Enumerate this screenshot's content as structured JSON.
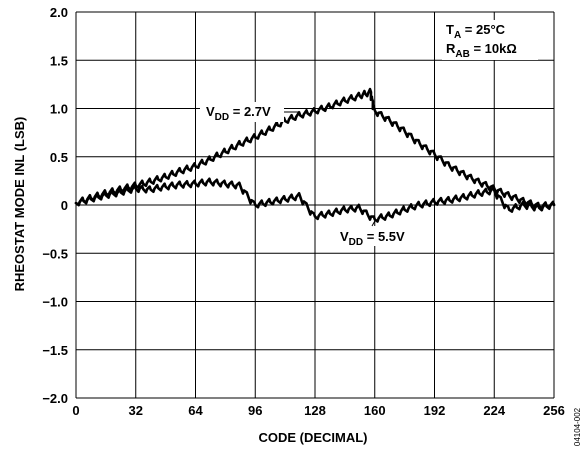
{
  "chart_data": {
    "type": "line",
    "xlabel": "CODE (DECIMAL)",
    "ylabel": "RHEOSTAT MODE INL (LSB)",
    "xlim": [
      0,
      256
    ],
    "ylim": [
      -2.0,
      2.0
    ],
    "xticks": [
      "0",
      "32",
      "64",
      "96",
      "128",
      "160",
      "192",
      "224",
      "256"
    ],
    "yticks": [
      "2.0",
      "1.5",
      "1.0",
      "0.5",
      "0",
      "−0.5",
      "−1.0",
      "−1.5",
      "−2.0"
    ],
    "grid": true,
    "annotations": {
      "ta_main": "T",
      "ta_sub": "A",
      "ta_rest": " = 25°C",
      "rab_main": "R",
      "rab_sub": "AB",
      "rab_rest": " = 10kΩ"
    },
    "figure_id": "04104-002",
    "series": [
      {
        "label_main": "V",
        "label_sub": "DD",
        "label_rest": " = 2.7V",
        "x": [
          0,
          8,
          16,
          24,
          32,
          40,
          48,
          56,
          64,
          72,
          80,
          88,
          96,
          104,
          112,
          120,
          128,
          136,
          144,
          152,
          158,
          160,
          168,
          176,
          184,
          192,
          200,
          208,
          216,
          224,
          232,
          240,
          248,
          256
        ],
        "values": [
          0.02,
          0.07,
          0.12,
          0.16,
          0.2,
          0.24,
          0.29,
          0.35,
          0.4,
          0.47,
          0.55,
          0.63,
          0.7,
          0.78,
          0.87,
          0.93,
          0.97,
          1.02,
          1.08,
          1.13,
          1.17,
          0.98,
          0.88,
          0.77,
          0.64,
          0.53,
          0.41,
          0.32,
          0.24,
          0.17,
          0.1,
          0.04,
          -0.01,
          0.0
        ]
      },
      {
        "label_main": "V",
        "label_sub": "DD",
        "label_rest": " = 5.5V",
        "x": [
          0,
          8,
          16,
          24,
          32,
          40,
          48,
          56,
          64,
          72,
          80,
          88,
          96,
          104,
          112,
          120,
          128,
          136,
          144,
          152,
          160,
          168,
          176,
          184,
          192,
          200,
          208,
          216,
          224,
          232,
          240,
          248,
          256
        ],
        "values": [
          0.02,
          0.06,
          0.1,
          0.13,
          0.17,
          0.16,
          0.19,
          0.21,
          0.22,
          0.24,
          0.22,
          0.2,
          0.0,
          0.03,
          0.06,
          0.09,
          -0.12,
          -0.09,
          -0.05,
          -0.03,
          -0.15,
          -0.11,
          -0.05,
          0.0,
          0.03,
          0.05,
          0.08,
          0.12,
          0.15,
          -0.05,
          0.0,
          -0.03,
          0.0
        ]
      }
    ]
  }
}
